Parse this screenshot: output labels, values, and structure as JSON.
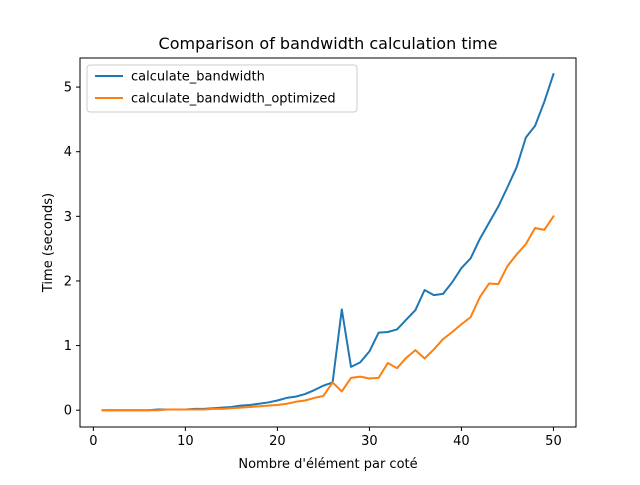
{
  "chart_data": {
    "type": "line",
    "title": "Comparison of bandwidth calculation time",
    "xlabel": "Nombre d'élément par coté",
    "ylabel": "Time (seconds)",
    "xlim": [
      -1.45,
      52.45
    ],
    "ylim": [
      -0.26,
      5.45
    ],
    "xticks": [
      0,
      10,
      20,
      30,
      40,
      50
    ],
    "yticks": [
      0,
      1,
      2,
      3,
      4,
      5
    ],
    "grid": false,
    "legend_position": "top-left",
    "x": [
      1,
      2,
      3,
      4,
      5,
      6,
      7,
      8,
      9,
      10,
      11,
      12,
      13,
      14,
      15,
      16,
      17,
      18,
      19,
      20,
      21,
      22,
      23,
      24,
      25,
      26,
      27,
      28,
      29,
      30,
      31,
      32,
      33,
      34,
      35,
      36,
      37,
      38,
      39,
      40,
      41,
      42,
      43,
      44,
      45,
      46,
      47,
      48,
      49,
      50
    ],
    "series": [
      {
        "name": "calculate_bandwidth",
        "color": "#1f77b4",
        "values": [
          0.0,
          0.0,
          0.0,
          0.0,
          0.0,
          0.0,
          0.01,
          0.01,
          0.01,
          0.01,
          0.02,
          0.02,
          0.03,
          0.04,
          0.05,
          0.07,
          0.08,
          0.1,
          0.12,
          0.15,
          0.19,
          0.21,
          0.25,
          0.31,
          0.38,
          0.43,
          1.56,
          0.67,
          0.74,
          0.91,
          1.2,
          1.21,
          1.25,
          1.4,
          1.55,
          1.86,
          1.78,
          1.8,
          1.98,
          2.2,
          2.35,
          2.65,
          2.9,
          3.15,
          3.45,
          3.76,
          4.22,
          4.4,
          4.77,
          5.2
        ]
      },
      {
        "name": "calculate_bandwidth_optimized",
        "color": "#ff7f0e",
        "values": [
          0.0,
          0.0,
          0.0,
          0.0,
          0.0,
          0.0,
          0.0,
          0.01,
          0.01,
          0.01,
          0.01,
          0.01,
          0.02,
          0.02,
          0.03,
          0.04,
          0.05,
          0.06,
          0.07,
          0.08,
          0.1,
          0.13,
          0.15,
          0.19,
          0.22,
          0.43,
          0.29,
          0.5,
          0.52,
          0.49,
          0.5,
          0.73,
          0.65,
          0.81,
          0.93,
          0.8,
          0.94,
          1.1,
          1.21,
          1.33,
          1.44,
          1.75,
          1.96,
          1.95,
          2.23,
          2.41,
          2.57,
          2.82,
          2.79,
          3.0
        ]
      }
    ]
  }
}
